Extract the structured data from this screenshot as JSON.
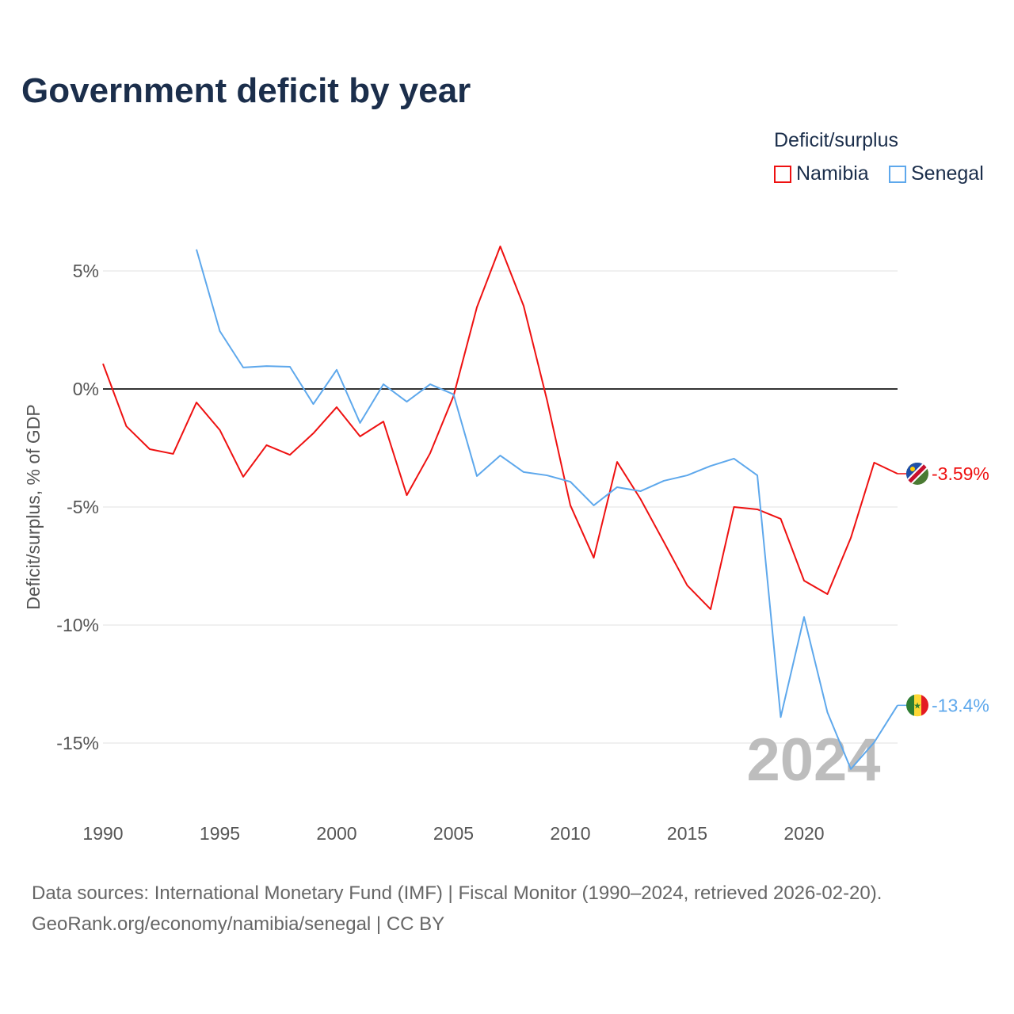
{
  "chart_data": {
    "type": "line",
    "title": "Government deficit by year",
    "ylabel": "Deficit/surplus, % of GDP",
    "xlabel": "",
    "legend_title": "Deficit/surplus",
    "legend_position": "top-right",
    "xlim": [
      1990,
      2024
    ],
    "ylim": [
      -17,
      7
    ],
    "x_ticks": [
      1990,
      1995,
      2000,
      2005,
      2010,
      2015,
      2020
    ],
    "x_tick_labels": [
      "1990",
      "1995",
      "2000",
      "2005",
      "2010",
      "2015",
      "2020"
    ],
    "y_ticks": [
      5,
      0,
      -5,
      -10,
      -15
    ],
    "y_tick_labels": [
      "5%",
      "0%",
      "-5%",
      "-10%",
      "-15%"
    ],
    "grid": true,
    "watermark_year": "2024",
    "series": [
      {
        "name": "Namibia",
        "color": "#ee1111",
        "end_label": "-3.59%",
        "x": [
          1990,
          1991,
          1992,
          1993,
          1994,
          1995,
          1996,
          1997,
          1998,
          1999,
          2000,
          2001,
          2002,
          2003,
          2004,
          2005,
          2006,
          2007,
          2008,
          2009,
          2010,
          2011,
          2012,
          2013,
          2014,
          2015,
          2016,
          2017,
          2018,
          2019,
          2020,
          2021,
          2022,
          2023,
          2024
        ],
        "values": [
          1.07,
          -1.58,
          -2.55,
          -2.75,
          -0.57,
          -1.74,
          -3.72,
          -2.38,
          -2.79,
          -1.88,
          -0.77,
          -2.01,
          -1.38,
          -4.5,
          -2.72,
          -0.3,
          3.46,
          6.04,
          3.52,
          -0.47,
          -4.93,
          -7.15,
          -3.09,
          -4.66,
          -6.48,
          -8.32,
          -9.33,
          -5.0,
          -5.1,
          -5.5,
          -8.12,
          -8.69,
          -6.31,
          -3.12,
          -3.59
        ]
      },
      {
        "name": "Senegal",
        "color": "#5ea8ec",
        "end_label": "-13.4%",
        "x": [
          1994,
          1995,
          1996,
          1997,
          1998,
          1999,
          2000,
          2001,
          2002,
          2003,
          2004,
          2005,
          2006,
          2007,
          2008,
          2009,
          2010,
          2011,
          2012,
          2013,
          2014,
          2015,
          2016,
          2017,
          2018,
          2019,
          2020,
          2021,
          2022,
          2023,
          2024
        ],
        "values": [
          5.91,
          2.45,
          0.91,
          0.97,
          0.94,
          -0.64,
          0.81,
          -1.44,
          0.2,
          -0.54,
          0.2,
          -0.23,
          -3.69,
          -2.82,
          -3.52,
          -3.66,
          -3.93,
          -4.93,
          -4.16,
          -4.33,
          -3.89,
          -3.66,
          -3.26,
          -2.95,
          -3.66,
          -13.9,
          -9.66,
          -13.7,
          -16.1,
          -14.97,
          -13.4
        ]
      }
    ]
  },
  "source": {
    "line1": "Data sources: International Monetary Fund (IMF) | Fiscal Monitor (1990–2024, retrieved 2026-02-20).",
    "line2": "GeoRank.org/economy/namibia/senegal | CC BY"
  }
}
